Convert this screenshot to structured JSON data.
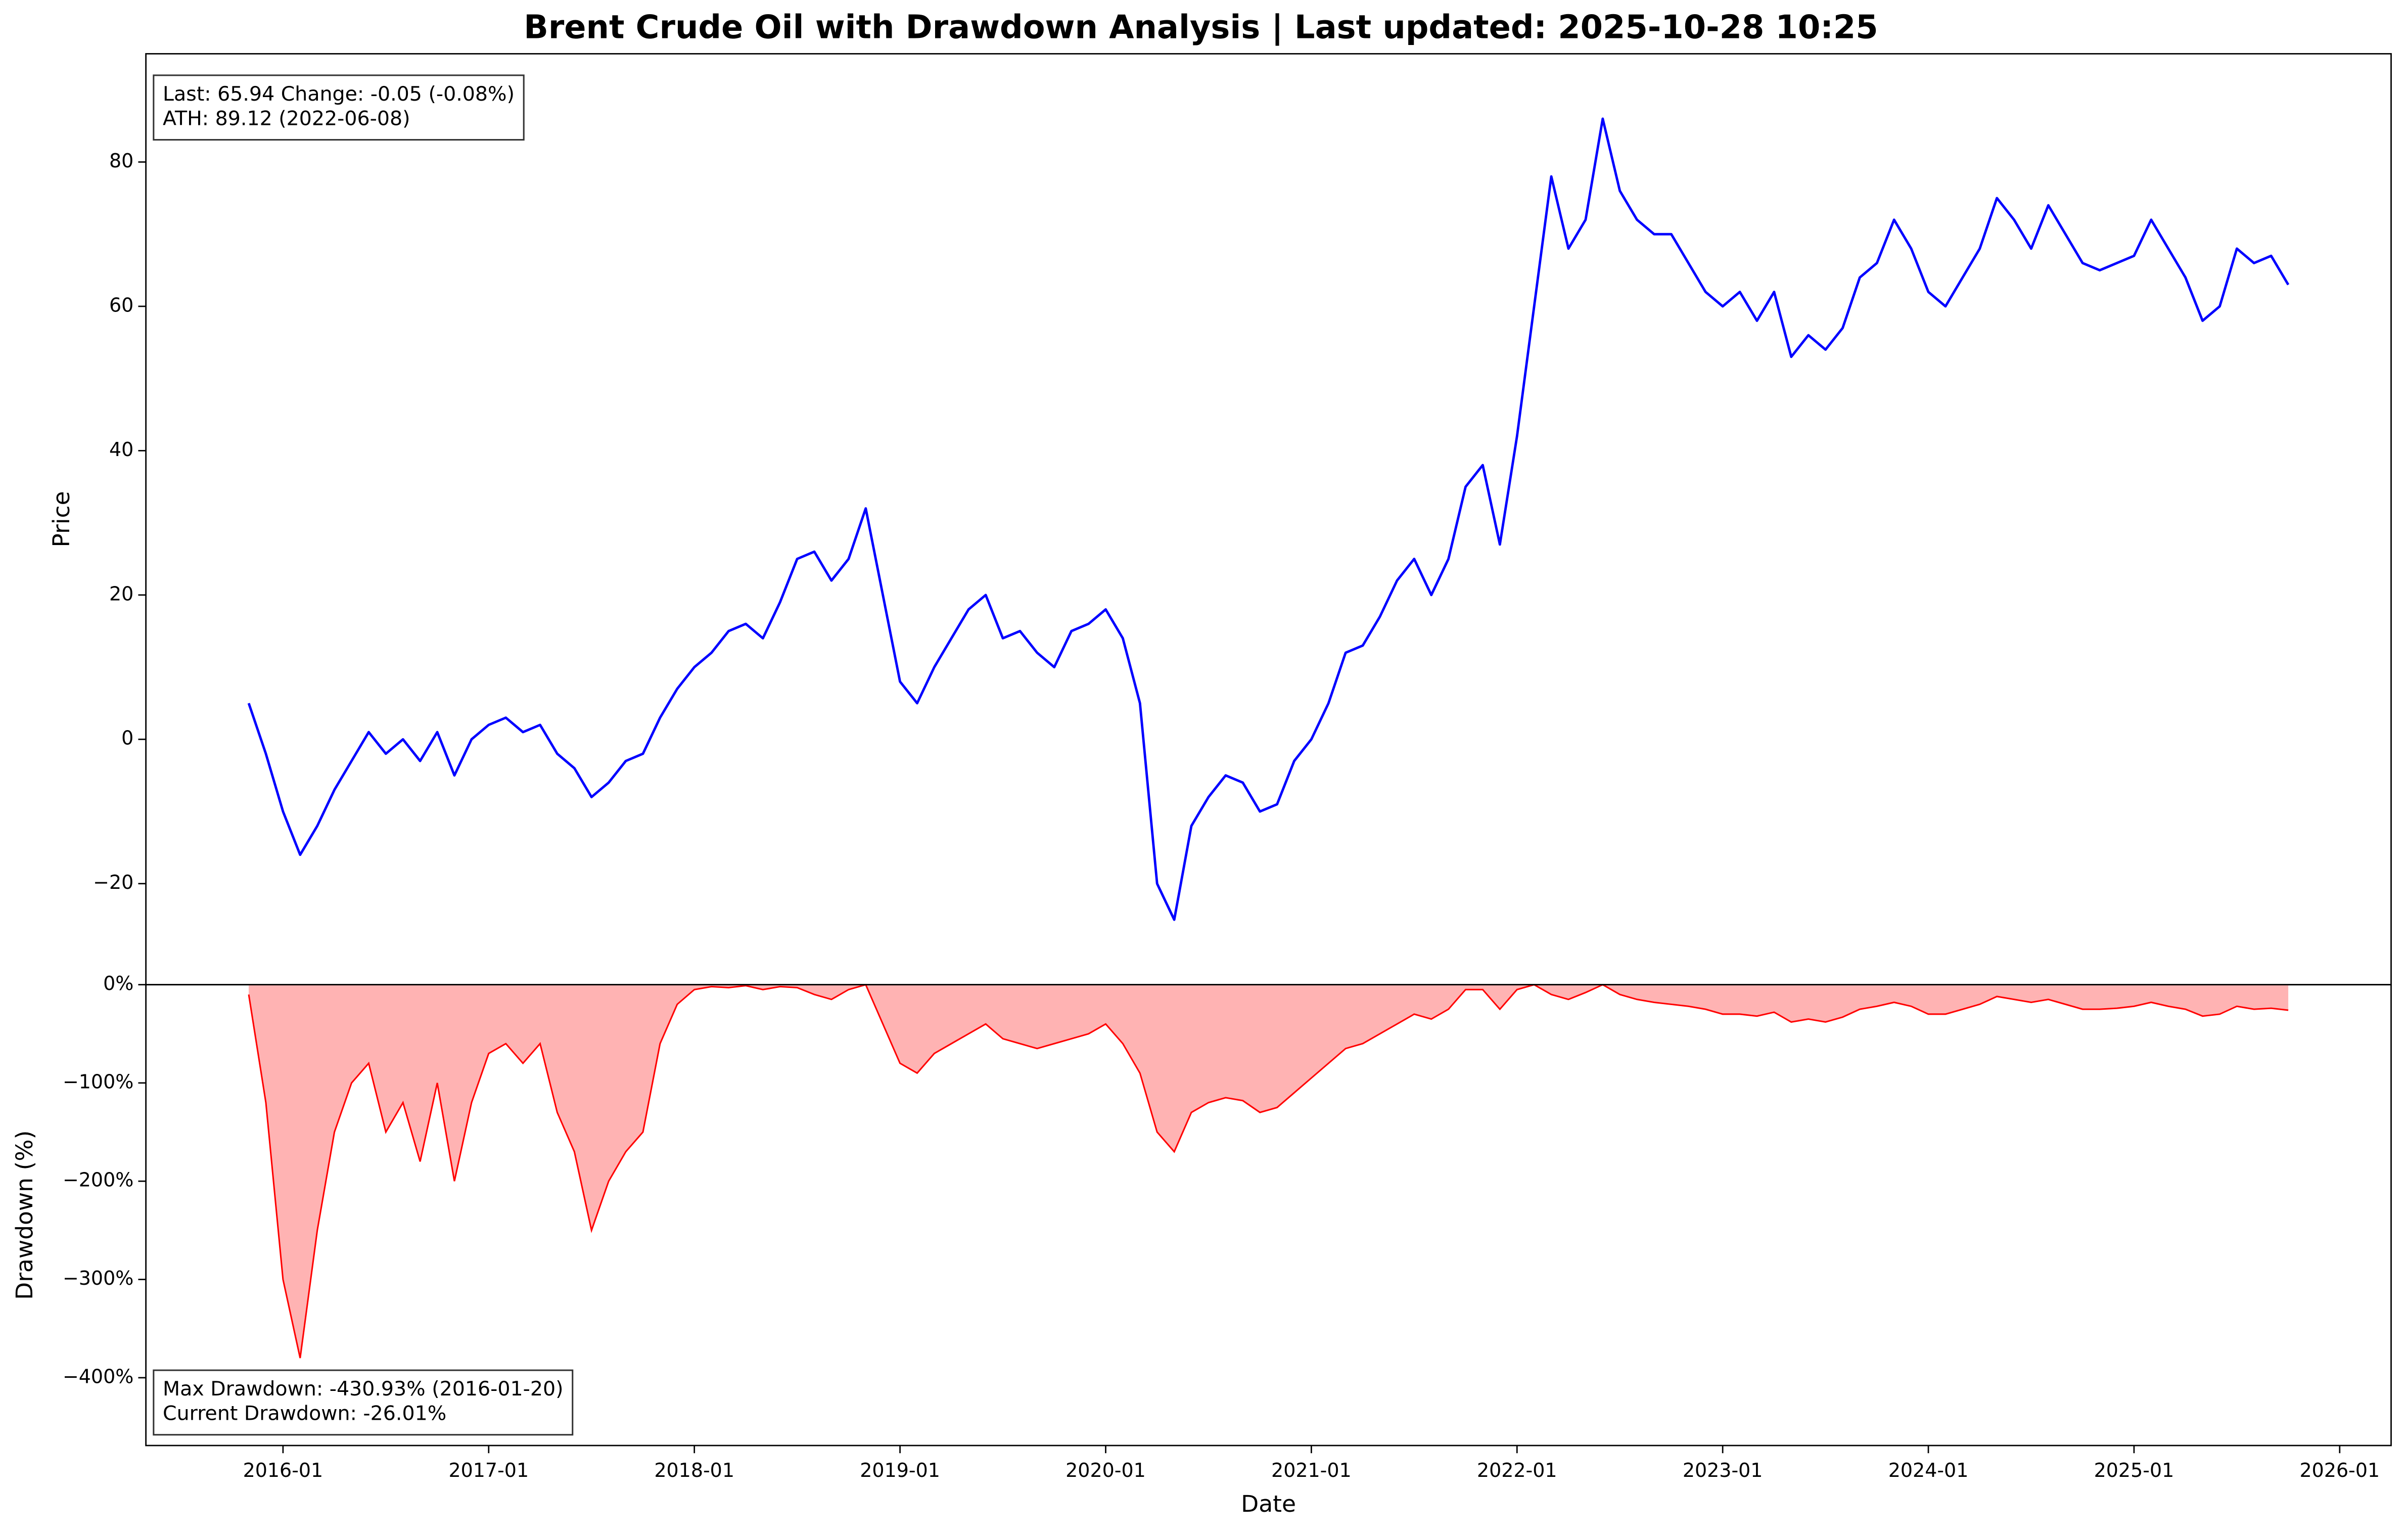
{
  "chart_data": [
    {
      "type": "line",
      "title": "Brent Crude Oil with Drawdown Analysis | Last updated: 2025-10-28 10:25",
      "ylabel": "Price",
      "annotation": [
        "Last: 65.94  Change: -0.05 (-0.08%)",
        "ATH: 89.12 (2022-06-08)"
      ],
      "x": [
        "2015-11",
        "2015-12",
        "2016-01",
        "2016-02",
        "2016-03",
        "2016-04",
        "2016-05",
        "2016-06",
        "2016-07",
        "2016-08",
        "2016-09",
        "2016-10",
        "2016-11",
        "2016-12",
        "2017-01",
        "2017-02",
        "2017-03",
        "2017-04",
        "2017-05",
        "2017-06",
        "2017-07",
        "2017-08",
        "2017-09",
        "2017-10",
        "2017-11",
        "2017-12",
        "2018-01",
        "2018-02",
        "2018-03",
        "2018-04",
        "2018-05",
        "2018-06",
        "2018-07",
        "2018-08",
        "2018-09",
        "2018-10",
        "2018-11",
        "2018-12",
        "2019-01",
        "2019-02",
        "2019-03",
        "2019-04",
        "2019-05",
        "2019-06",
        "2019-07",
        "2019-08",
        "2019-09",
        "2019-10",
        "2019-11",
        "2019-12",
        "2020-01",
        "2020-02",
        "2020-03",
        "2020-04",
        "2020-05",
        "2020-06",
        "2020-07",
        "2020-08",
        "2020-09",
        "2020-10",
        "2020-11",
        "2020-12",
        "2021-01",
        "2021-02",
        "2021-03",
        "2021-04",
        "2021-05",
        "2021-06",
        "2021-07",
        "2021-08",
        "2021-09",
        "2021-10",
        "2021-11",
        "2021-12",
        "2022-01",
        "2022-02",
        "2022-03",
        "2022-04",
        "2022-05",
        "2022-06",
        "2022-07",
        "2022-08",
        "2022-09",
        "2022-10",
        "2022-11",
        "2022-12",
        "2023-01",
        "2023-02",
        "2023-03",
        "2023-04",
        "2023-05",
        "2023-06",
        "2023-07",
        "2023-08",
        "2023-09",
        "2023-10",
        "2023-11",
        "2023-12",
        "2024-01",
        "2024-02",
        "2024-03",
        "2024-04",
        "2024-05",
        "2024-06",
        "2024-07",
        "2024-08",
        "2024-09",
        "2024-10",
        "2024-11",
        "2024-12",
        "2025-01",
        "2025-02",
        "2025-03",
        "2025-04",
        "2025-05",
        "2025-06",
        "2025-07",
        "2025-08",
        "2025-09",
        "2025-10"
      ],
      "series": [
        {
          "color": "#0000ff",
          "values": [
            5,
            -2,
            -10,
            -16,
            -12,
            -7,
            -3,
            1,
            -2,
            0,
            -3,
            1,
            -5,
            0,
            2,
            3,
            1,
            2,
            -2,
            -4,
            -8,
            -6,
            -3,
            -2,
            3,
            7,
            10,
            12,
            15,
            16,
            14,
            19,
            25,
            26,
            22,
            25,
            32,
            20,
            8,
            5,
            10,
            14,
            18,
            20,
            14,
            15,
            12,
            10,
            15,
            16,
            18,
            14,
            5,
            -20,
            -25,
            -12,
            -8,
            -5,
            -6,
            -10,
            -9,
            -3,
            0,
            5,
            12,
            13,
            17,
            22,
            25,
            20,
            25,
            35,
            38,
            27,
            42,
            60,
            78,
            68,
            72,
            86,
            76,
            72,
            70,
            70,
            66,
            62,
            60,
            62,
            58,
            62,
            53,
            56,
            54,
            57,
            64,
            66,
            72,
            68,
            62,
            60,
            64,
            68,
            75,
            72,
            68,
            74,
            70,
            66,
            65,
            66,
            67,
            72,
            68,
            64,
            58,
            60,
            68,
            66,
            67,
            63
          ]
        }
      ],
      "xlim": [
        "2015-05",
        "2026-04"
      ],
      "ylim": [
        -34,
        95
      ],
      "yticks": [
        {
          "value": -20,
          "label": "−20"
        },
        0,
        20,
        40,
        60,
        80
      ]
    },
    {
      "type": "area",
      "xlabel": "Date",
      "ylabel": "Drawdown (%)",
      "annotation": [
        "Max Drawdown: -430.93% (2016-01-20)",
        "Current Drawdown: -26.01%"
      ],
      "x": [
        "2015-11",
        "2015-12",
        "2016-01",
        "2016-02",
        "2016-03",
        "2016-04",
        "2016-05",
        "2016-06",
        "2016-07",
        "2016-08",
        "2016-09",
        "2016-10",
        "2016-11",
        "2016-12",
        "2017-01",
        "2017-02",
        "2017-03",
        "2017-04",
        "2017-05",
        "2017-06",
        "2017-07",
        "2017-08",
        "2017-09",
        "2017-10",
        "2017-11",
        "2017-12",
        "2018-01",
        "2018-02",
        "2018-03",
        "2018-04",
        "2018-05",
        "2018-06",
        "2018-07",
        "2018-08",
        "2018-09",
        "2018-10",
        "2018-11",
        "2018-12",
        "2019-01",
        "2019-02",
        "2019-03",
        "2019-04",
        "2019-05",
        "2019-06",
        "2019-07",
        "2019-08",
        "2019-09",
        "2019-10",
        "2019-11",
        "2019-12",
        "2020-01",
        "2020-02",
        "2020-03",
        "2020-04",
        "2020-05",
        "2020-06",
        "2020-07",
        "2020-08",
        "2020-09",
        "2020-10",
        "2020-11",
        "2020-12",
        "2021-01",
        "2021-02",
        "2021-03",
        "2021-04",
        "2021-05",
        "2021-06",
        "2021-07",
        "2021-08",
        "2021-09",
        "2021-10",
        "2021-11",
        "2021-12",
        "2022-01",
        "2022-02",
        "2022-03",
        "2022-04",
        "2022-05",
        "2022-06",
        "2022-07",
        "2022-08",
        "2022-09",
        "2022-10",
        "2022-11",
        "2022-12",
        "2023-01",
        "2023-02",
        "2023-03",
        "2023-04",
        "2023-05",
        "2023-06",
        "2023-07",
        "2023-08",
        "2023-09",
        "2023-10",
        "2023-11",
        "2023-12",
        "2024-01",
        "2024-02",
        "2024-03",
        "2024-04",
        "2024-05",
        "2024-06",
        "2024-07",
        "2024-08",
        "2024-09",
        "2024-10",
        "2024-11",
        "2024-12",
        "2025-01",
        "2025-02",
        "2025-03",
        "2025-04",
        "2025-05",
        "2025-06",
        "2025-07",
        "2025-08",
        "2025-09",
        "2025-10"
      ],
      "series": [
        {
          "color": "#ff0000",
          "fill": "#ffb3b3",
          "values": [
            -10,
            -120,
            -300,
            -380,
            -250,
            -150,
            -100,
            -80,
            -150,
            -120,
            -180,
            -100,
            -200,
            -120,
            -70,
            -60,
            -80,
            -60,
            -130,
            -170,
            -250,
            -200,
            -170,
            -150,
            -60,
            -20,
            -5,
            -2,
            -3,
            -1,
            -5,
            -2,
            -3,
            -10,
            -15,
            -5,
            0,
            -40,
            -80,
            -90,
            -70,
            -60,
            -50,
            -40,
            -55,
            -60,
            -65,
            -60,
            -55,
            -50,
            -40,
            -60,
            -90,
            -150,
            -170,
            -130,
            -120,
            -115,
            -118,
            -130,
            -125,
            -110,
            -95,
            -80,
            -65,
            -60,
            -50,
            -40,
            -30,
            -35,
            -25,
            -5,
            -5,
            -25,
            -5,
            0,
            -10,
            -15,
            -8,
            0,
            -10,
            -15,
            -18,
            -20,
            -22,
            -25,
            -30,
            -30,
            -32,
            -28,
            -38,
            -35,
            -38,
            -33,
            -25,
            -22,
            -18,
            -22,
            -30,
            -30,
            -25,
            -20,
            -12,
            -15,
            -18,
            -15,
            -20,
            -25,
            -25,
            -24,
            -22,
            -18,
            -22,
            -25,
            -32,
            -30,
            -22,
            -25,
            -24,
            -26
          ]
        }
      ],
      "xlim": [
        "2015-05",
        "2026-04"
      ],
      "ylim": [
        -469,
        0
      ],
      "yticks": [
        {
          "value": 0,
          "label": "0%"
        },
        {
          "value": -100,
          "label": "−100%"
        },
        {
          "value": -200,
          "label": "−200%"
        },
        {
          "value": -300,
          "label": "−300%"
        },
        {
          "value": -400,
          "label": "−400%"
        }
      ],
      "xticks": [
        "2016-01",
        "2017-01",
        "2018-01",
        "2019-01",
        "2020-01",
        "2021-01",
        "2022-01",
        "2023-01",
        "2024-01",
        "2025-01",
        "2026-01"
      ]
    }
  ]
}
